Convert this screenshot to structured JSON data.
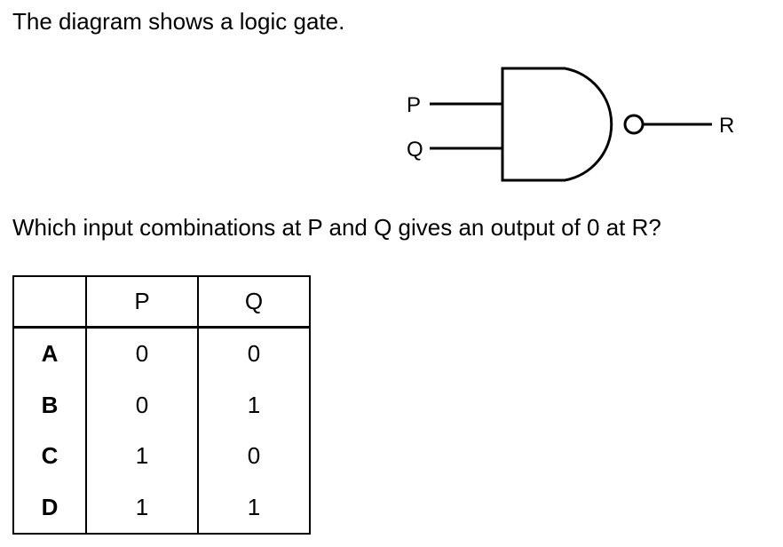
{
  "intro_text": "The diagram shows a logic gate.",
  "gate": {
    "type": "NAND",
    "input_labels": [
      "P",
      "Q"
    ],
    "output_label": "R"
  },
  "question_text": "Which input combinations at P and Q gives an output of 0 at R?",
  "table": {
    "headers": [
      "",
      "P",
      "Q"
    ],
    "rows": [
      {
        "label": "A",
        "p": "0",
        "q": "0"
      },
      {
        "label": "B",
        "p": "0",
        "q": "1"
      },
      {
        "label": "C",
        "p": "1",
        "q": "0"
      },
      {
        "label": "D",
        "p": "1",
        "q": "1"
      }
    ]
  }
}
